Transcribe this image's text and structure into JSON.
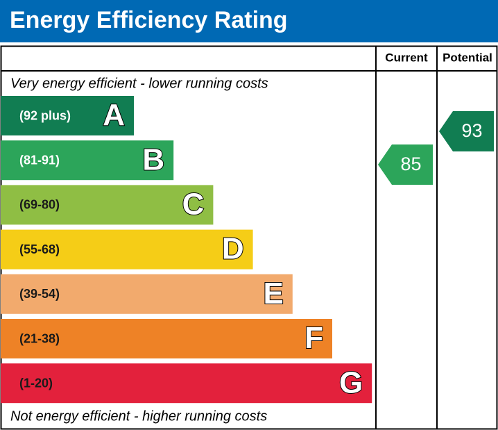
{
  "title": "Energy Efficiency Rating",
  "columns": {
    "current": "Current",
    "potential": "Potential"
  },
  "top_note": "Very energy efficient - lower running costs",
  "bottom_note": "Not energy efficient - higher running costs",
  "bands": [
    {
      "range": "(92 plus)",
      "letter": "A",
      "color": "#117d52",
      "text_color": "#ffffff"
    },
    {
      "range": "(81-91)",
      "letter": "B",
      "color": "#2ca55a",
      "text_color": "#ffffff"
    },
    {
      "range": "(69-80)",
      "letter": "C",
      "color": "#8fbe44",
      "text_color": "#1a1a1a"
    },
    {
      "range": "(55-68)",
      "letter": "D",
      "color": "#f5cd17",
      "text_color": "#1a1a1a"
    },
    {
      "range": "(39-54)",
      "letter": "E",
      "color": "#f2aa6d",
      "text_color": "#1a1a1a"
    },
    {
      "range": "(21-38)",
      "letter": "F",
      "color": "#ee8226",
      "text_color": "#1a1a1a"
    },
    {
      "range": "(1-20)",
      "letter": "G",
      "color": "#e3213c",
      "text_color": "#1a1a1a"
    }
  ],
  "current": {
    "value": 85,
    "color": "#2ca55a"
  },
  "potential": {
    "value": 93,
    "color": "#117d52"
  }
}
